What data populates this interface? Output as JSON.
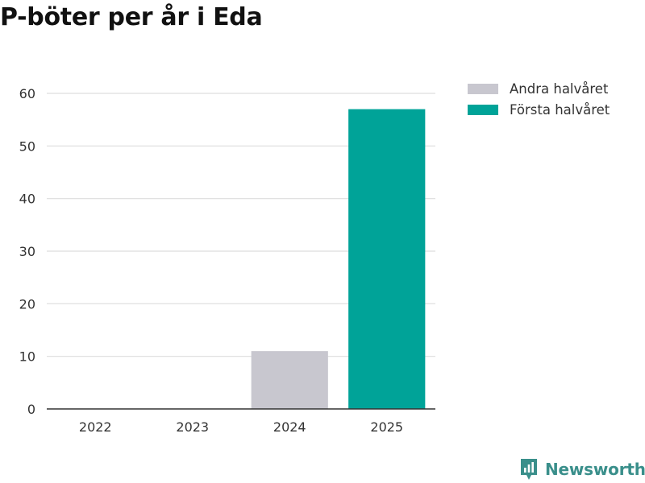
{
  "chart_data": {
    "type": "bar",
    "stacked": true,
    "title": "P-böter per år i Eda",
    "xlabel": "",
    "ylabel": "",
    "categories": [
      "2022",
      "2023",
      "2024",
      "2025"
    ],
    "series": [
      {
        "name": "Andra halvåret",
        "color": "#c8c7cf",
        "values": [
          0,
          0,
          11,
          0
        ]
      },
      {
        "name": "Första halvåret",
        "color": "#00a398",
        "values": [
          0,
          0,
          0,
          57
        ]
      }
    ],
    "ylim": [
      0,
      60
    ],
    "yticks": [
      0,
      10,
      20,
      30,
      40,
      50,
      60
    ],
    "grid": true,
    "legend_position": "top-right"
  },
  "branding": {
    "name": "Newsworthy",
    "icon": "newsworthy-logo-icon",
    "color": "#3a8f8b"
  }
}
